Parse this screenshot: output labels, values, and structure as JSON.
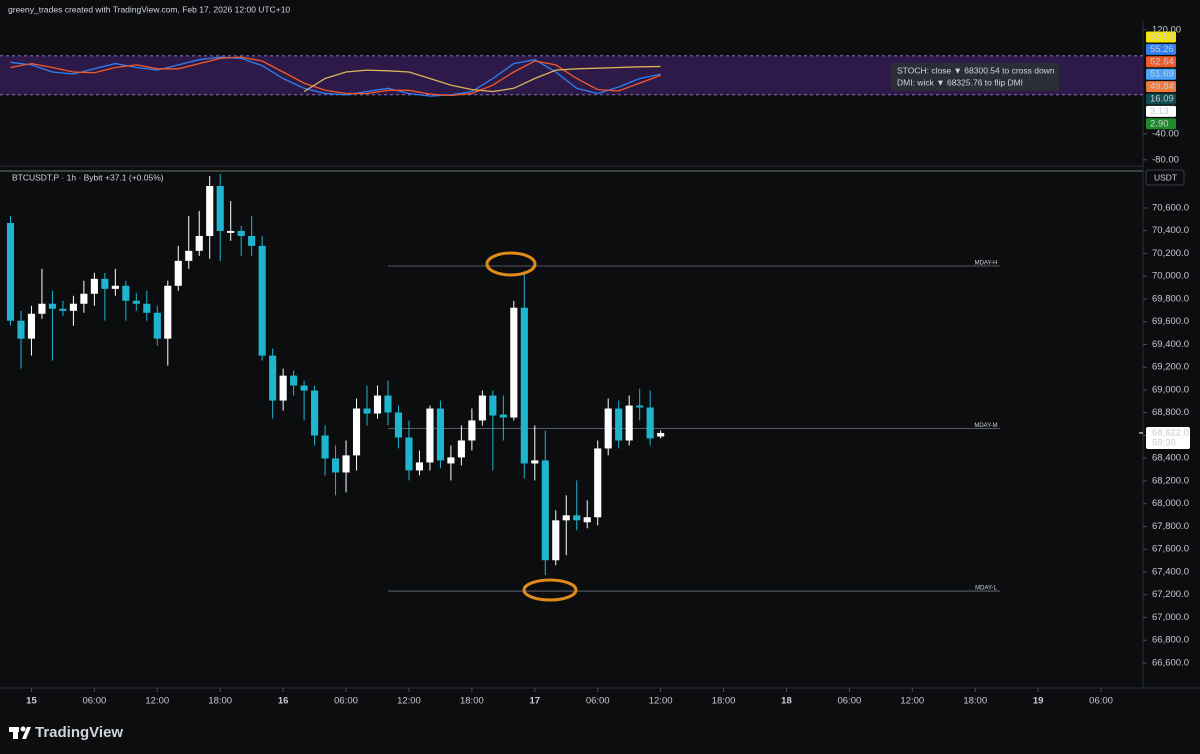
{
  "header": {
    "text": "greeny_trades created with TradingView.com, Feb 17, 2026 12:00 UTC+10"
  },
  "footer": {
    "brand": "TradingView"
  },
  "info_box": {
    "line1": "STOCH: close ▼ 68300.54 to cross down",
    "line2": "DMI: wick ▼ 68325.76 to flip DMI"
  },
  "chart_data": [
    {
      "type": "candlestick",
      "symbol": "BTCUSDT.P · 1h · Bybit",
      "change": "+37.1 (+0.05%)",
      "currency": "USDT",
      "up_color": "#ffffff",
      "down_color": "#1fb5cf",
      "xlim": [
        -3,
        106
      ],
      "xticks": [
        {
          "value": 0,
          "label": "15"
        },
        {
          "value": 6,
          "label": "06:00"
        },
        {
          "value": 12,
          "label": "12:00"
        },
        {
          "value": 18,
          "label": "18:00"
        },
        {
          "value": 24,
          "label": "16"
        },
        {
          "value": 30,
          "label": "06:00"
        },
        {
          "value": 36,
          "label": "12:00"
        },
        {
          "value": 42,
          "label": "18:00"
        },
        {
          "value": 48,
          "label": "17"
        },
        {
          "value": 54,
          "label": "06:00"
        },
        {
          "value": 60,
          "label": "12:00"
        },
        {
          "value": 66,
          "label": "18:00"
        },
        {
          "value": 72,
          "label": "18"
        },
        {
          "value": 78,
          "label": "06:00"
        },
        {
          "value": 84,
          "label": "12:00"
        },
        {
          "value": 90,
          "label": "18:00"
        },
        {
          "value": 96,
          "label": "19"
        },
        {
          "value": 102,
          "label": "06:00"
        }
      ],
      "ylim": [
        66380,
        70925
      ],
      "yticks": [
        {
          "value": 66600,
          "label": "66,600.0"
        },
        {
          "value": 66800,
          "label": "66,800.0"
        },
        {
          "value": 67000,
          "label": "67,000.0"
        },
        {
          "value": 67200,
          "label": "67,200.0"
        },
        {
          "value": 67400,
          "label": "67,400.0"
        },
        {
          "value": 67600,
          "label": "67,600.0"
        },
        {
          "value": 67800,
          "label": "67,800.0"
        },
        {
          "value": 68000,
          "label": "68,000.0"
        },
        {
          "value": 68200,
          "label": "68,200.0"
        },
        {
          "value": 68400,
          "label": "68,400.0"
        },
        {
          "value": 68600,
          "label": "68,600.0"
        },
        {
          "value": 68800,
          "label": "68,800.0"
        },
        {
          "value": 69000,
          "label": "69,000.0"
        },
        {
          "value": 69200,
          "label": "69,200.0"
        },
        {
          "value": 69400,
          "label": "69,400.0"
        },
        {
          "value": 69600,
          "label": "69,600.0"
        },
        {
          "value": 69800,
          "label": "69,800.0"
        },
        {
          "value": 70000,
          "label": "70,000.0"
        },
        {
          "value": 70200,
          "label": "70,200.0"
        },
        {
          "value": 70400,
          "label": "70,400.0"
        },
        {
          "value": 70600,
          "label": "70,600.0"
        }
      ],
      "grid": false,
      "last_price": {
        "value": 68622.0,
        "label": "68,622.0",
        "countdown": "59:30"
      },
      "levels": [
        {
          "label": "MDAY-H",
          "value": 70090
        },
        {
          "label": "MDAY-M",
          "value": 68660
        },
        {
          "label": "MDAY-L",
          "value": 67232
        }
      ],
      "x": [
        -2,
        -1,
        0,
        1,
        2,
        3,
        4,
        5,
        6,
        7,
        8,
        9,
        10,
        11,
        12,
        13,
        14,
        15,
        16,
        17,
        18,
        19,
        20,
        21,
        22,
        23,
        24,
        25,
        26,
        27,
        28,
        29,
        30,
        31,
        32,
        33,
        34,
        35,
        36,
        37,
        38,
        39,
        40,
        41,
        42,
        43,
        44,
        45,
        46,
        47,
        48,
        49,
        50,
        51,
        52,
        53,
        54,
        55,
        56,
        57,
        58,
        59,
        60
      ],
      "open": [
        70468,
        69609,
        69451,
        69670,
        69758,
        69714,
        69696,
        69758,
        69846,
        69977,
        69889,
        69916,
        69784,
        69758,
        69679,
        69451,
        69916,
        70135,
        70223,
        70354,
        70793,
        70381,
        70398,
        70354,
        70267,
        69302,
        68907,
        69126,
        69039,
        68995,
        68600,
        68398,
        68275,
        68425,
        68837,
        68793,
        68951,
        68802,
        68582,
        68293,
        68363,
        68837,
        68354,
        68407,
        68556,
        68732,
        68951,
        68784,
        68758,
        69723,
        68354,
        68381,
        67503,
        67854,
        67898,
        67837,
        67881,
        68486,
        68837,
        68556,
        68863,
        68846,
        68591
      ],
      "high": [
        70530,
        69696,
        69740,
        70065,
        69872,
        69784,
        69828,
        69960,
        70030,
        70030,
        70065,
        69960,
        69854,
        69872,
        69740,
        69960,
        70267,
        70530,
        70574,
        70881,
        70900,
        70661,
        70442,
        70530,
        70354,
        69363,
        69188,
        69170,
        69082,
        69039,
        68688,
        68512,
        68556,
        68925,
        69039,
        69039,
        69082,
        68863,
        68732,
        68468,
        68863,
        68907,
        68512,
        68688,
        68837,
        68995,
        68995,
        68951,
        69784,
        70047,
        68688,
        68644,
        67942,
        68074,
        68205,
        68030,
        68556,
        68925,
        68907,
        68951,
        69012,
        68995,
        68644
      ],
      "low": [
        69565,
        69188,
        69302,
        69626,
        69258,
        69653,
        69565,
        69679,
        69740,
        69609,
        69828,
        69609,
        69696,
        69609,
        69389,
        69214,
        69872,
        70065,
        70179,
        70153,
        70135,
        70311,
        70179,
        70179,
        69258,
        68749,
        68819,
        68951,
        68732,
        68512,
        68249,
        68074,
        68100,
        68293,
        68688,
        68749,
        68688,
        68486,
        68205,
        68249,
        68293,
        68311,
        68205,
        68337,
        68468,
        68688,
        68293,
        68556,
        68732,
        68223,
        68205,
        67372,
        67460,
        67547,
        67767,
        67784,
        67810,
        68425,
        68486,
        68512,
        68732,
        68512,
        68574
      ],
      "close": [
        69609,
        69451,
        69670,
        69758,
        69714,
        69696,
        69758,
        69846,
        69977,
        69889,
        69916,
        69784,
        69758,
        69679,
        69451,
        69916,
        70135,
        70223,
        70354,
        70793,
        70398,
        70398,
        70354,
        70267,
        69302,
        68907,
        69126,
        69039,
        68995,
        68600,
        68398,
        68275,
        68425,
        68837,
        68793,
        68951,
        68802,
        68582,
        68293,
        68363,
        68837,
        68381,
        68407,
        68556,
        68732,
        68951,
        68775,
        68758,
        69723,
        68354,
        68381,
        67503,
        67854,
        67898,
        67854,
        67881,
        68486,
        68837,
        68556,
        68863,
        68846,
        68574,
        68622
      ]
    },
    {
      "type": "line",
      "ylim": [
        -88,
        132
      ],
      "yticks": [
        {
          "value": 120,
          "label": "120.00"
        },
        {
          "value": -40,
          "label": "-40.00"
        },
        {
          "value": -80,
          "label": "-80.00"
        }
      ],
      "band": [
        20,
        80
      ],
      "band_color": "#3b1f5e",
      "x": [
        -2,
        0,
        2,
        4,
        6,
        8,
        10,
        12,
        14,
        16,
        18,
        20,
        22,
        24,
        26,
        28,
        30,
        32,
        34,
        36,
        38,
        40,
        42,
        44,
        46,
        48,
        50,
        52,
        54,
        56,
        58,
        60
      ],
      "series": [
        {
          "name": "K",
          "color": "#2f7ff0",
          "values": [
            70,
            66,
            55,
            52,
            60,
            68,
            62,
            58,
            66,
            74,
            78,
            76,
            65,
            45,
            30,
            22,
            20,
            25,
            30,
            22,
            18,
            20,
            25,
            45,
            68,
            74,
            55,
            30,
            22,
            32,
            45,
            51.69
          ]
        },
        {
          "name": "D",
          "color": "#f05a28",
          "values": [
            62,
            68,
            62,
            55,
            54,
            62,
            66,
            60,
            60,
            68,
            76,
            78,
            72,
            55,
            38,
            27,
            22,
            22,
            27,
            27,
            21,
            19,
            22,
            35,
            55,
            72,
            66,
            45,
            28,
            26,
            38,
            49.84
          ]
        },
        {
          "name": "ADX",
          "color": "#d9b45a",
          "values": [
            null,
            null,
            null,
            null,
            null,
            null,
            null,
            null,
            null,
            null,
            null,
            null,
            null,
            null,
            25,
            45,
            55,
            58,
            57,
            55,
            45,
            35,
            28,
            25,
            30,
            45,
            58,
            60,
            61,
            62,
            63,
            63.53
          ]
        }
      ],
      "value_badges": [
        {
          "value": 63.53,
          "label": "63.53",
          "color": "#f5e50a",
          "text_color": "#000000"
        },
        {
          "value": 55.26,
          "label": "55.26",
          "color": "#2f7ff0",
          "text_color": "#ffffff"
        },
        {
          "value": 52.64,
          "label": "52.64",
          "color": "#f05a28",
          "text_color": "#ffffff"
        },
        {
          "value": 51.69,
          "label": "51.69",
          "color": "#4aa3ff",
          "text_color": "#000000"
        },
        {
          "value": 49.84,
          "label": "49.84",
          "color": "#f07a3c",
          "text_color": "#ffffff"
        },
        {
          "value": 16.09,
          "label": "16.09",
          "color": "#0e4b4f",
          "text_color": "#ffffff"
        },
        {
          "value": 3.13,
          "label": "3.13",
          "color": "#ffffff",
          "text_color": "#000000"
        },
        {
          "value": 2.9,
          "label": "2.90",
          "color": "#1f8a2a",
          "text_color": "#ffffff"
        }
      ]
    }
  ]
}
